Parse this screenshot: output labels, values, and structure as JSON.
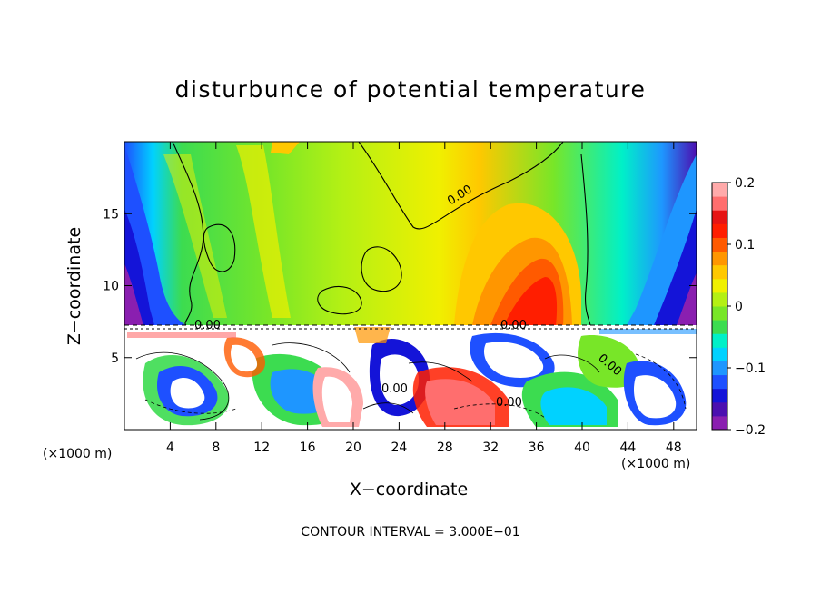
{
  "chart_data": {
    "type": "heatmap",
    "title": "disturbunce of potential temperature",
    "xlabel": "X−coordinate",
    "ylabel": "Z−coordinate",
    "x_unit_left": "(×1000 m)",
    "x_unit_right": "(×1000 m)",
    "x_ticks": [
      "4",
      "8",
      "12",
      "16",
      "20",
      "24",
      "28",
      "32",
      "36",
      "40",
      "44",
      "48"
    ],
    "y_ticks": [
      "5",
      "10",
      "15"
    ],
    "xlim": [
      0,
      50
    ],
    "ylim": [
      0,
      20
    ],
    "colorbar": {
      "ticks": [
        "0.2",
        "0.1",
        "0",
        "−0.1",
        "−0.2"
      ],
      "range": [
        -0.2,
        0.2
      ],
      "colors": [
        "#8a1fb0",
        "#4b0fb0",
        "#1414d8",
        "#1e50ff",
        "#1e96ff",
        "#00d2ff",
        "#00f0c8",
        "#3cdc50",
        "#78e628",
        "#b4f014",
        "#f0f000",
        "#ffc800",
        "#ff9600",
        "#ff5a00",
        "#ff1e00",
        "#e61414",
        "#ff6e6e",
        "#ffaaaa"
      ]
    },
    "contour_labels": [
      "0.00",
      "0.00",
      "0.00",
      "0.00",
      "0.00",
      "0.00"
    ],
    "annotation": "CONTOUR INTERVAL = 3.000E−01"
  }
}
